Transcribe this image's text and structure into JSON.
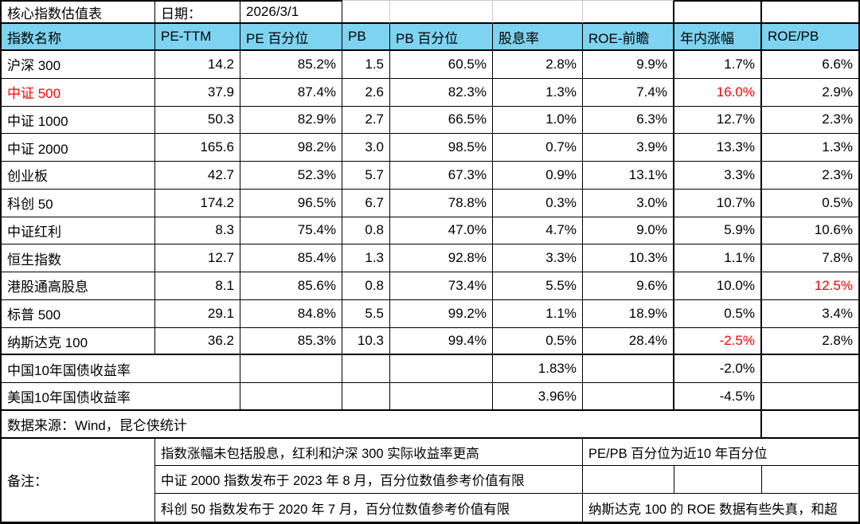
{
  "title_bar": {
    "title": "核心指数估值表",
    "date_label": "日期：",
    "date_value": "2026/3/1"
  },
  "table": {
    "headers": [
      "指数名称",
      "PE-TTM",
      "PE 百分位",
      "PB",
      "PB 百分位",
      "股息率",
      "ROE-前瞻",
      "年内涨幅",
      "ROE/PB"
    ],
    "rows": [
      {
        "name": "沪深 300",
        "values": [
          "14.2",
          "85.2%",
          "1.5",
          "60.5%",
          "2.8%",
          "9.9%",
          "1.7%",
          "6.6%"
        ]
      },
      {
        "name": "中证 500",
        "values": [
          "37.9",
          "87.4%",
          "2.6",
          "82.3%",
          "1.3%",
          "7.4%",
          "16.0%",
          "2.9%"
        ]
      },
      {
        "name": "中证 1000",
        "values": [
          "50.3",
          "82.9%",
          "2.7",
          "66.5%",
          "1.0%",
          "6.3%",
          "12.7%",
          "2.3%"
        ]
      },
      {
        "name": "中证 2000",
        "values": [
          "165.6",
          "98.2%",
          "3.0",
          "98.5%",
          "0.7%",
          "3.9%",
          "13.3%",
          "1.3%"
        ]
      },
      {
        "name": "创业板",
        "values": [
          "42.7",
          "52.3%",
          "5.7",
          "67.3%",
          "0.9%",
          "13.1%",
          "3.3%",
          "2.3%"
        ]
      },
      {
        "name": "科创 50",
        "values": [
          "174.2",
          "96.5%",
          "6.7",
          "78.8%",
          "0.3%",
          "3.0%",
          "10.7%",
          "0.5%"
        ]
      },
      {
        "name": "中证红利",
        "values": [
          "8.3",
          "75.4%",
          "0.8",
          "47.0%",
          "4.7%",
          "9.0%",
          "5.9%",
          "10.6%"
        ]
      },
      {
        "name": "恒生指数",
        "values": [
          "12.7",
          "85.4%",
          "1.3",
          "92.8%",
          "3.3%",
          "10.3%",
          "1.1%",
          "7.8%"
        ]
      },
      {
        "name": "港股通高股息",
        "values": [
          "8.1",
          "85.6%",
          "0.8",
          "73.4%",
          "5.5%",
          "9.6%",
          "10.0%",
          "12.5%"
        ]
      },
      {
        "name": "标普 500",
        "values": [
          "29.1",
          "84.8%",
          "5.5",
          "99.2%",
          "1.1%",
          "18.9%",
          "0.5%",
          "3.4%"
        ]
      },
      {
        "name": "纳斯达克 100",
        "values": [
          "36.2",
          "85.3%",
          "10.3",
          "99.4%",
          "0.5%",
          "28.4%",
          "-2.5%",
          "2.8%"
        ]
      }
    ],
    "bond_rows": [
      {
        "name": "中国10年国债收益率",
        "dividend_yield": "1.83%",
        "ytd_change": "-2.0%"
      },
      {
        "name": "美国10年国债收益率",
        "dividend_yield": "3.96%",
        "ytd_change": "-4.5%"
      }
    ]
  },
  "source": {
    "text": "数据来源：Wind，昆仑侠统计"
  },
  "notes": {
    "label": "备注：",
    "left": [
      "指数涨幅未包括股息，红利和沪深 300 实际收益率更高",
      "中证 2000 指数发布于 2023 年 8 月，百分位数值参考价值有限",
      "科创 50 指数发布于 2020 年 7 月，百分位数值参考价值有限"
    ],
    "right_top": "PE/PB 百分位为近10 年百分位",
    "right_bottom": "纳斯达克 100 的 ROE 数据有些失真，和超"
  },
  "colors": {
    "header_bg": "#7ED3F0",
    "highlight_red": "#FF0000",
    "grid_black": "#000000",
    "grid_gray": "#C9C9C9"
  }
}
